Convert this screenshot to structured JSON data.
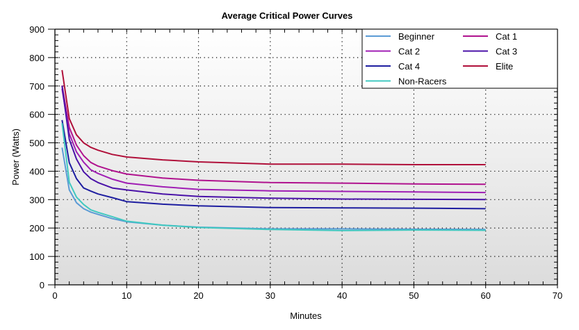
{
  "chart_data": {
    "type": "line",
    "title": "Average Critical Power Curves",
    "xlabel": "Minutes",
    "ylabel": "Power (Watts)",
    "xlim": [
      0,
      70
    ],
    "ylim": [
      0,
      900
    ],
    "xticks": [
      "0",
      "10",
      "20",
      "30",
      "40",
      "50",
      "60",
      "70"
    ],
    "yticks": [
      "0",
      "100",
      "200",
      "300",
      "400",
      "500",
      "600",
      "700",
      "800",
      "900"
    ],
    "grid": true,
    "legend_position": "top-right",
    "x": [
      1,
      2,
      3,
      4,
      5,
      6,
      8,
      10,
      15,
      20,
      30,
      40,
      50,
      60
    ],
    "series": [
      {
        "name": "Beginner",
        "color": "#5b9bd5",
        "values": [
          483,
          334,
          289,
          268,
          256,
          248,
          233,
          222,
          210,
          203,
          197,
          197,
          196,
          195
        ]
      },
      {
        "name": "Cat 1",
        "color": "#b0128e",
        "values": [
          702,
          554,
          492,
          455,
          431,
          418,
          402,
          390,
          376,
          368,
          360,
          358,
          355,
          354
        ]
      },
      {
        "name": "Cat 2",
        "color": "#a01eb4",
        "values": [
          690,
          532,
          468,
          432,
          405,
          392,
          372,
          358,
          345,
          336,
          331,
          329,
          327,
          325
        ]
      },
      {
        "name": "Cat 3",
        "color": "#4a12a8",
        "values": [
          700,
          512,
          443,
          398,
          374,
          360,
          341,
          334,
          320,
          311,
          305,
          302,
          301,
          300
        ]
      },
      {
        "name": "Cat 4",
        "color": "#1e1ea0",
        "values": [
          580,
          430,
          374,
          341,
          330,
          320,
          307,
          293,
          284,
          278,
          272,
          271,
          270,
          268
        ]
      },
      {
        "name": "Elite",
        "color": "#b0103a",
        "values": [
          756,
          585,
          528,
          500,
          484,
          474,
          459,
          450,
          440,
          433,
          425,
          425,
          423,
          423
        ]
      },
      {
        "name": "Non-Racers",
        "color": "#40c8c0",
        "values": [
          569,
          361,
          309,
          283,
          264,
          255,
          240,
          224,
          210,
          202,
          195,
          191,
          193,
          192
        ]
      }
    ]
  }
}
